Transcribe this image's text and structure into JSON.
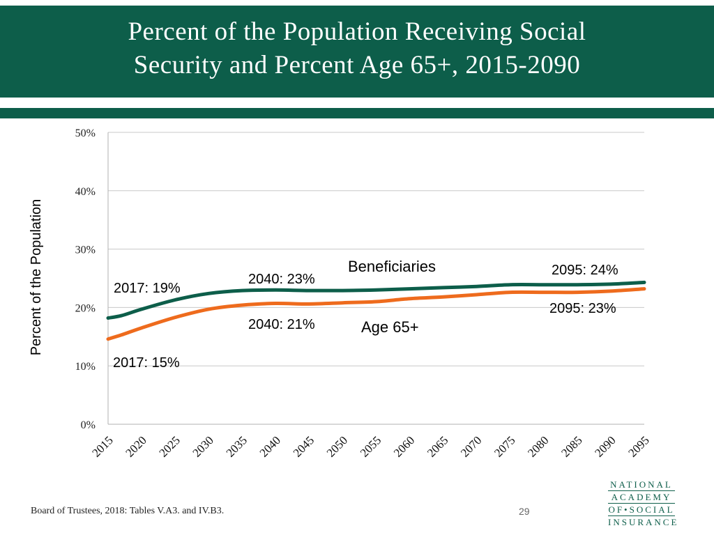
{
  "slide": {
    "title_line1": "Percent of the Population Receiving Social",
    "title_line2": "Security and Percent Age 65+, 2015-2090",
    "source": "Board of Trustees, 2018: Tables V.A3. and IV.B3.",
    "page_number": "29",
    "logo_lines": [
      "NATIONAL",
      "ACADEMY",
      "OF•SOCIAL",
      "INSURANCE"
    ]
  },
  "colors": {
    "brand": "#0d5e4a",
    "beneficiaries": "#0d5e4a",
    "age65": "#ee6b1d",
    "grid": "#c8c8c8"
  },
  "chart_data": {
    "type": "line",
    "title": "Percent of the Population Receiving Social Security and Percent Age 65+, 2015-2090",
    "xlabel": "",
    "ylabel": "Percent of the Population",
    "ylim": [
      0,
      50
    ],
    "xlim": [
      2015,
      2095
    ],
    "y_ticks": [
      0,
      10,
      20,
      30,
      40,
      50
    ],
    "y_tick_labels": [
      "0%",
      "10%",
      "20%",
      "30%",
      "40%",
      "50%"
    ],
    "x_ticks": [
      2015,
      2020,
      2025,
      2030,
      2035,
      2040,
      2045,
      2050,
      2055,
      2060,
      2065,
      2070,
      2075,
      2080,
      2085,
      2090,
      2095
    ],
    "grid": true,
    "series": [
      {
        "name": "Beneficiaries",
        "color": "#0d5e4a",
        "x": [
          2015,
          2017,
          2020,
          2025,
          2030,
          2035,
          2040,
          2045,
          2050,
          2055,
          2060,
          2065,
          2070,
          2075,
          2080,
          2085,
          2090,
          2095
        ],
        "values": [
          18.2,
          18.6,
          19.7,
          21.3,
          22.4,
          22.9,
          23.0,
          22.9,
          22.9,
          23.0,
          23.2,
          23.4,
          23.6,
          23.9,
          23.9,
          23.9,
          24.0,
          24.3
        ]
      },
      {
        "name": "Age 65+",
        "color": "#ee6b1d",
        "x": [
          2015,
          2017,
          2020,
          2025,
          2030,
          2035,
          2040,
          2045,
          2050,
          2055,
          2060,
          2065,
          2070,
          2075,
          2080,
          2085,
          2090,
          2095
        ],
        "values": [
          14.6,
          15.3,
          16.5,
          18.3,
          19.7,
          20.4,
          20.7,
          20.6,
          20.8,
          21.0,
          21.5,
          21.8,
          22.2,
          22.6,
          22.6,
          22.6,
          22.8,
          23.2
        ]
      }
    ],
    "annotations": [
      {
        "id": "ben-2017",
        "text": "2017: 19%"
      },
      {
        "id": "age-2017",
        "text": "2017: 15%"
      },
      {
        "id": "ben-2040",
        "text": "2040: 23%"
      },
      {
        "id": "age-2040",
        "text": "2040: 21%"
      },
      {
        "id": "ben-label",
        "text": "Beneficiaries"
      },
      {
        "id": "age-label",
        "text": "Age 65+"
      },
      {
        "id": "ben-2095",
        "text": "2095: 24%"
      },
      {
        "id": "age-2095",
        "text": "2095: 23%"
      }
    ]
  }
}
